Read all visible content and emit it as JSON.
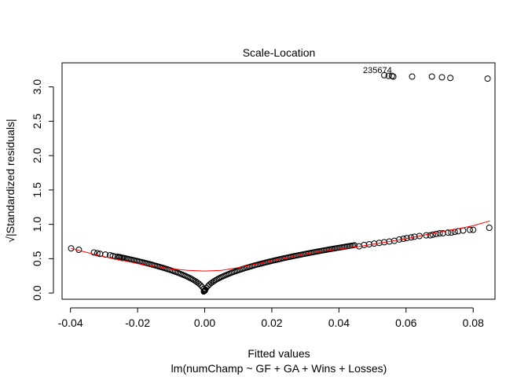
{
  "chart_data": {
    "type": "scatter",
    "title": "Scale-Location",
    "xlabel": "Fitted values",
    "subtitle": "lm(numChamp ~ GF + GA + Wins + Losses)",
    "ylabel": "√|Standardized residuals|",
    "xlim": [
      -0.0425,
      0.0865
    ],
    "ylim": [
      -0.09,
      3.35
    ],
    "xticks": [
      -0.04,
      -0.02,
      0.0,
      0.02,
      0.04,
      0.06,
      0.08
    ],
    "xtick_labels": [
      "-0.04",
      "-0.02",
      "0.00",
      "0.02",
      "0.04",
      "0.06",
      "0.08"
    ],
    "yticks": [
      0.0,
      0.5,
      1.0,
      1.5,
      2.0,
      2.5,
      3.0
    ],
    "ytick_labels": [
      "0.0",
      "0.5",
      "1.0",
      "1.5",
      "2.0",
      "2.5",
      "3.0"
    ],
    "grid": false,
    "point_color": "#000000",
    "smoother_color": "#ff0000",
    "point_label_text": "235674",
    "series": [
      {
        "marker": "open-circle",
        "points": [
          [
            -0.0398,
            0.65
          ],
          [
            -0.0375,
            0.63
          ],
          [
            -0.033,
            0.59
          ],
          [
            -0.032,
            0.58
          ],
          [
            -0.0312,
            0.57
          ],
          [
            -0.0296,
            0.56
          ],
          [
            -0.0282,
            0.55
          ],
          [
            -0.0274,
            0.54
          ],
          [
            -0.0266,
            0.53
          ],
          [
            -0.0255,
            0.52
          ],
          [
            -0.0246,
            0.51
          ],
          [
            0.046,
            0.68
          ],
          [
            0.0475,
            0.7
          ],
          [
            0.049,
            0.71
          ],
          [
            0.0505,
            0.72
          ],
          [
            0.052,
            0.73
          ],
          [
            0.0535,
            0.74
          ],
          [
            0.055,
            0.75
          ],
          [
            0.0565,
            0.76
          ],
          [
            0.058,
            0.78
          ],
          [
            0.0592,
            0.79
          ],
          [
            0.0602,
            0.8
          ],
          [
            0.0615,
            0.81
          ],
          [
            0.0625,
            0.82
          ],
          [
            0.064,
            0.83
          ],
          [
            0.066,
            0.84
          ],
          [
            0.0672,
            0.84
          ],
          [
            0.068,
            0.85
          ],
          [
            0.069,
            0.86
          ],
          [
            0.07,
            0.87
          ],
          [
            0.071,
            0.87
          ],
          [
            0.0725,
            0.88
          ],
          [
            0.0735,
            0.88
          ],
          [
            0.0745,
            0.89
          ],
          [
            0.0755,
            0.9
          ],
          [
            0.077,
            0.91
          ],
          [
            0.079,
            0.92
          ],
          [
            0.08,
            0.92
          ],
          [
            0.0848,
            0.95
          ],
          [
            0.0535,
            3.17
          ],
          [
            0.0548,
            3.16
          ],
          [
            0.0558,
            3.16
          ],
          [
            0.0562,
            3.15
          ],
          [
            0.0618,
            3.15
          ],
          [
            0.0677,
            3.15
          ],
          [
            0.0707,
            3.14
          ],
          [
            0.0732,
            3.13
          ],
          [
            0.0843,
            3.12
          ]
        ]
      }
    ],
    "smoother": [
      [
        -0.0398,
        0.65
      ],
      [
        -0.035,
        0.59
      ],
      [
        -0.03,
        0.53
      ],
      [
        -0.025,
        0.48
      ],
      [
        -0.02,
        0.43
      ],
      [
        -0.015,
        0.39
      ],
      [
        -0.01,
        0.355
      ],
      [
        -0.005,
        0.33
      ],
      [
        0.0,
        0.32
      ],
      [
        0.005,
        0.33
      ],
      [
        0.01,
        0.37
      ],
      [
        0.015,
        0.42
      ],
      [
        0.02,
        0.47
      ],
      [
        0.025,
        0.52
      ],
      [
        0.03,
        0.57
      ],
      [
        0.035,
        0.61
      ],
      [
        0.04,
        0.64
      ],
      [
        0.045,
        0.67
      ],
      [
        0.05,
        0.71
      ],
      [
        0.055,
        0.75
      ],
      [
        0.06,
        0.79
      ],
      [
        0.065,
        0.84
      ],
      [
        0.07,
        0.89
      ],
      [
        0.075,
        0.93
      ],
      [
        0.08,
        0.98
      ],
      [
        0.085,
        1.05
      ]
    ]
  }
}
